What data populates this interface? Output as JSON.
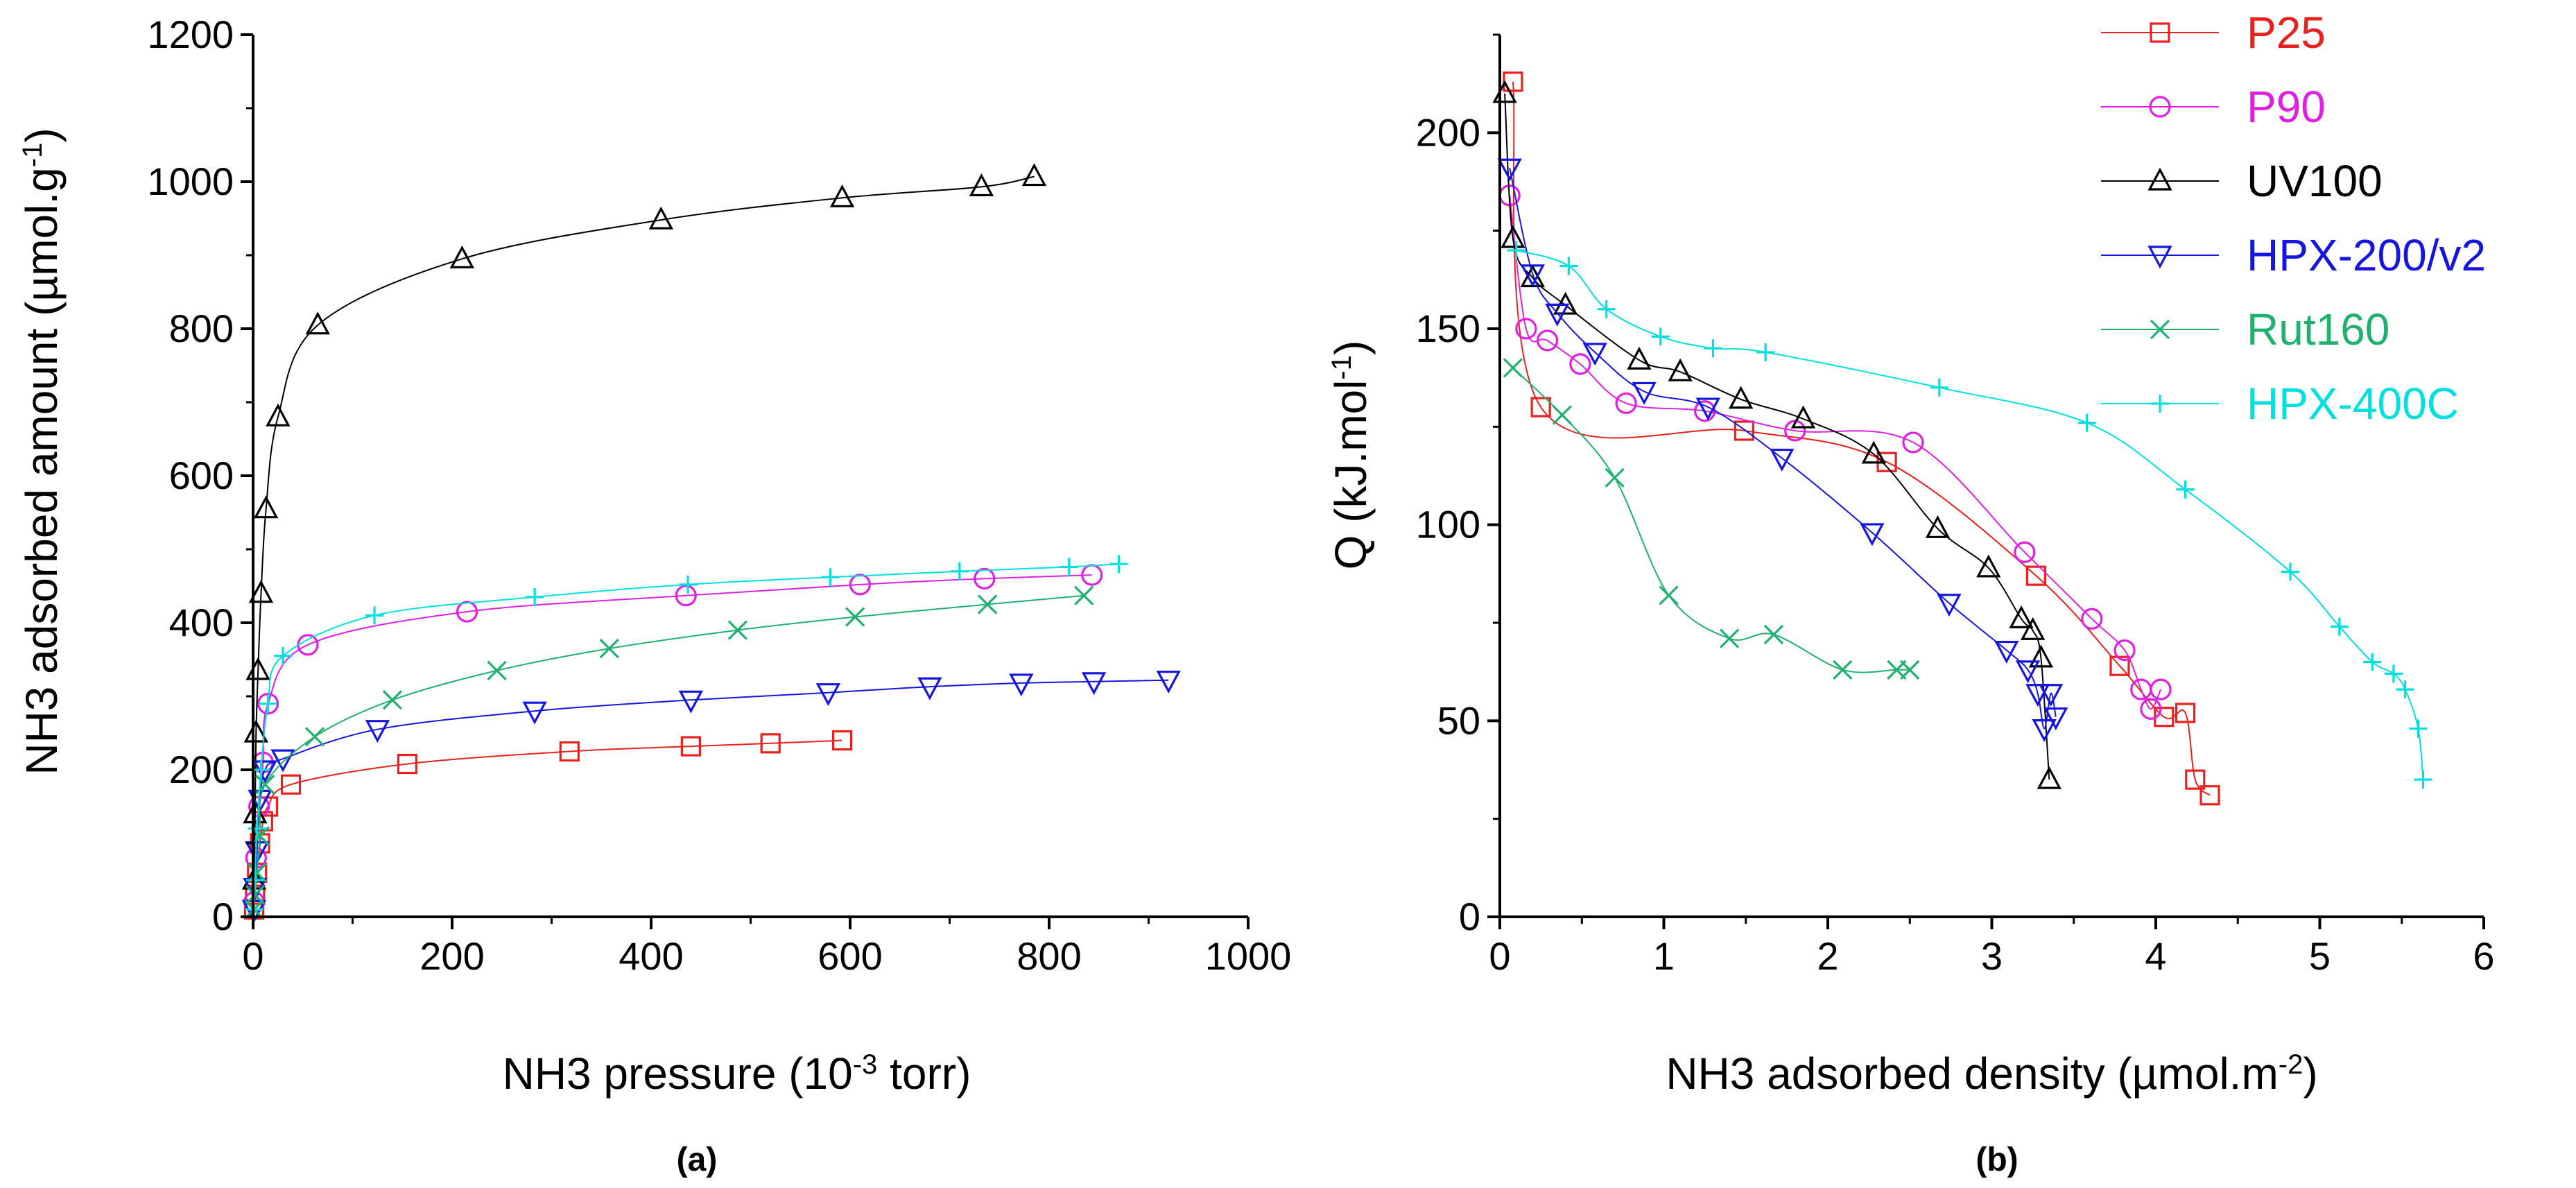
{
  "chart_data": [
    {
      "type": "scatter",
      "panel_label": "(a)",
      "xlabel": {
        "main": "NH3 pressure (10",
        "sup": "-3",
        "tail": " torr)"
      },
      "ylabel": {
        "main": "NH3 adsorbed amount (µmol.g",
        "sup": "-1",
        "tail": ")"
      },
      "xlim": [
        0,
        1000
      ],
      "ylim": [
        0,
        1200
      ],
      "xticks": [
        0,
        200,
        400,
        600,
        800,
        1000
      ],
      "yticks": [
        0,
        200,
        400,
        600,
        800,
        1000,
        1200
      ],
      "grid": false,
      "series": [
        {
          "name": "P25",
          "color": "#e8201e",
          "marker": "square",
          "points": [
            [
              1,
              10
            ],
            [
              2,
              30
            ],
            [
              4,
              60
            ],
            [
              7,
              100
            ],
            [
              10,
              130
            ],
            [
              15,
              150
            ],
            [
              38,
              180
            ],
            [
              155,
              208
            ],
            [
              318,
              225
            ],
            [
              440,
              232
            ],
            [
              520,
              236
            ],
            [
              592,
              240
            ]
          ]
        },
        {
          "name": "P90",
          "color": "#e020e0",
          "marker": "circle",
          "points": [
            [
              1,
              20
            ],
            [
              3,
              80
            ],
            [
              6,
              150
            ],
            [
              10,
              210
            ],
            [
              15,
              290
            ],
            [
              55,
              370
            ],
            [
              215,
              415
            ],
            [
              435,
              437
            ],
            [
              610,
              452
            ],
            [
              735,
              460
            ],
            [
              843,
              465
            ]
          ]
        },
        {
          "name": "UV100",
          "color": "#000000",
          "marker": "triangle",
          "points": [
            [
              1,
              50
            ],
            [
              2,
              140
            ],
            [
              3,
              250
            ],
            [
              5,
              335
            ],
            [
              8,
              440
            ],
            [
              13,
              555
            ],
            [
              25,
              680
            ],
            [
              65,
              805
            ],
            [
              210,
              895
            ],
            [
              410,
              948
            ],
            [
              592,
              978
            ],
            [
              732,
              993
            ],
            [
              785,
              1007
            ]
          ]
        },
        {
          "name": "HPX-200/v2",
          "color": "#1515e0",
          "marker": "triangle-down",
          "points": [
            [
              1,
              10
            ],
            [
              2,
              40
            ],
            [
              4,
              90
            ],
            [
              7,
              160
            ],
            [
              12,
              200
            ],
            [
              30,
              215
            ],
            [
              125,
              255
            ],
            [
              283,
              280
            ],
            [
              440,
              295
            ],
            [
              578,
              305
            ],
            [
              680,
              313
            ],
            [
              772,
              318
            ],
            [
              845,
              320
            ],
            [
              920,
              322
            ]
          ]
        },
        {
          "name": "Rut160",
          "color": "#20b070",
          "marker": "x",
          "points": [
            [
              1,
              10
            ],
            [
              2,
              30
            ],
            [
              4,
              60
            ],
            [
              7,
              110
            ],
            [
              12,
              180
            ],
            [
              62,
              245
            ],
            [
              140,
              295
            ],
            [
              245,
              335
            ],
            [
              358,
              365
            ],
            [
              487,
              390
            ],
            [
              605,
              408
            ],
            [
              738,
              425
            ],
            [
              835,
              437
            ]
          ]
        },
        {
          "name": "HPX-400C",
          "color": "#00e0e0",
          "marker": "plus",
          "points": [
            [
              1,
              10
            ],
            [
              2,
              50
            ],
            [
              4,
              120
            ],
            [
              8,
              200
            ],
            [
              15,
              290
            ],
            [
              30,
              355
            ],
            [
              122,
              410
            ],
            [
              283,
              435
            ],
            [
              437,
              452
            ],
            [
              580,
              462
            ],
            [
              710,
              470
            ],
            [
              820,
              476
            ],
            [
              870,
              480
            ]
          ]
        }
      ]
    },
    {
      "type": "line",
      "panel_label": "(b)",
      "xlabel": {
        "main": "NH3 adsorbed density (µmol.m",
        "sup": "-2",
        "tail": ")"
      },
      "ylabel": {
        "main": "Q (kJ.mol",
        "sup": "-1",
        "tail": ")"
      },
      "xlim": [
        0,
        6
      ],
      "ylim": [
        0,
        225
      ],
      "xticks": [
        0,
        1,
        2,
        3,
        4,
        5,
        6
      ],
      "yticks": [
        0,
        50,
        100,
        150,
        200
      ],
      "grid": false,
      "legend_position": "top-right",
      "series": [
        {
          "name": "P25",
          "color": "#e8201e",
          "marker": "square",
          "points": [
            [
              0.08,
              213
            ],
            [
              0.25,
              130
            ],
            [
              1.49,
              124
            ],
            [
              2.36,
              116
            ],
            [
              3.27,
              87
            ],
            [
              3.78,
              64
            ],
            [
              4.05,
              51
            ],
            [
              4.18,
              52
            ],
            [
              4.24,
              35
            ],
            [
              4.33,
              31
            ]
          ]
        },
        {
          "name": "P90",
          "color": "#e020e0",
          "marker": "circle",
          "points": [
            [
              0.06,
              184
            ],
            [
              0.16,
              150
            ],
            [
              0.29,
              147
            ],
            [
              0.49,
              141
            ],
            [
              0.77,
              131
            ],
            [
              1.25,
              129
            ],
            [
              1.8,
              124
            ],
            [
              2.52,
              121
            ],
            [
              3.2,
              93
            ],
            [
              3.61,
              76
            ],
            [
              3.81,
              68
            ],
            [
              3.91,
              58
            ],
            [
              3.97,
              53
            ],
            [
              4.03,
              58
            ]
          ]
        },
        {
          "name": "UV100",
          "color": "#000000",
          "marker": "triangle",
          "points": [
            [
              0.03,
              210
            ],
            [
              0.08,
              173
            ],
            [
              0.2,
              163
            ],
            [
              0.4,
              156
            ],
            [
              0.85,
              142
            ],
            [
              1.1,
              139
            ],
            [
              1.47,
              132
            ],
            [
              1.85,
              127
            ],
            [
              2.28,
              118
            ],
            [
              2.67,
              99
            ],
            [
              2.98,
              89
            ],
            [
              3.18,
              76
            ],
            [
              3.25,
              73
            ],
            [
              3.3,
              66
            ],
            [
              3.35,
              35
            ]
          ]
        },
        {
          "name": "HPX-200/v2",
          "color": "#1515e0",
          "marker": "triangle-down",
          "points": [
            [
              0.06,
              191
            ],
            [
              0.2,
              164
            ],
            [
              0.35,
              154
            ],
            [
              0.58,
              144
            ],
            [
              0.88,
              134
            ],
            [
              1.27,
              130
            ],
            [
              1.72,
              117
            ],
            [
              2.27,
              98
            ],
            [
              2.74,
              80
            ],
            [
              3.09,
              68
            ],
            [
              3.22,
              63
            ],
            [
              3.28,
              57
            ],
            [
              3.32,
              48
            ],
            [
              3.36,
              57
            ],
            [
              3.39,
              51
            ]
          ]
        },
        {
          "name": "Rut160",
          "color": "#20b070",
          "marker": "x",
          "points": [
            [
              0.08,
              140
            ],
            [
              0.38,
              128
            ],
            [
              0.7,
              112
            ],
            [
              1.03,
              82
            ],
            [
              1.4,
              71
            ],
            [
              1.67,
              72
            ],
            [
              2.09,
              63
            ],
            [
              2.42,
              63
            ],
            [
              2.5,
              63
            ]
          ]
        },
        {
          "name": "HPX-400C",
          "color": "#00e0e0",
          "marker": "plus",
          "points": [
            [
              0.1,
              170
            ],
            [
              0.42,
              166
            ],
            [
              0.65,
              155
            ],
            [
              0.98,
              148
            ],
            [
              1.3,
              145
            ],
            [
              1.62,
              144
            ],
            [
              2.68,
              135
            ],
            [
              3.58,
              126
            ],
            [
              4.18,
              109
            ],
            [
              4.82,
              88
            ],
            [
              5.12,
              74
            ],
            [
              5.32,
              65
            ],
            [
              5.45,
              62
            ],
            [
              5.52,
              58
            ],
            [
              5.6,
              48
            ],
            [
              5.63,
              35
            ]
          ]
        }
      ]
    }
  ]
}
